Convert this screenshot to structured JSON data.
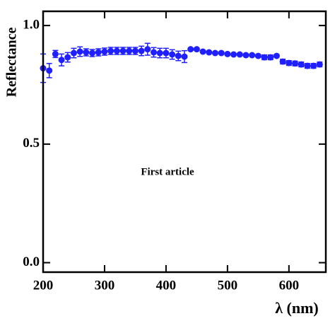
{
  "chart_data": {
    "type": "scatter",
    "xlabel": "λ (nm)",
    "ylabel": "Reflectance",
    "annotation": "First article",
    "xlim": [
      200,
      660
    ],
    "ylim": [
      -0.04,
      1.06
    ],
    "xticks": [
      200,
      300,
      400,
      500,
      600
    ],
    "yticks": [
      {
        "value": 0,
        "label": "0.0"
      },
      0.5,
      {
        "value": 1,
        "label": "1.0"
      }
    ],
    "series": [
      {
        "color": "#1f1fff",
        "x": [
          200,
          210,
          220,
          230,
          240,
          250,
          260,
          270,
          280,
          290,
          300,
          310,
          320,
          330,
          340,
          350,
          360,
          370,
          380,
          390,
          400,
          410,
          420,
          430
        ],
        "values": [
          0.82,
          0.81,
          0.88,
          0.855,
          0.866,
          0.884,
          0.89,
          0.887,
          0.884,
          0.887,
          0.89,
          0.893,
          0.893,
          0.893,
          0.893,
          0.893,
          0.893,
          0.9,
          0.887,
          0.884,
          0.884,
          0.878,
          0.872,
          0.869
        ],
        "errors": [
          0.06,
          0.03,
          0.015,
          0.025,
          0.02,
          0.02,
          0.02,
          0.015,
          0.015,
          0.015,
          0.015,
          0.015,
          0.015,
          0.015,
          0.015,
          0.015,
          0.02,
          0.025,
          0.02,
          0.02,
          0.02,
          0.02,
          0.02,
          0.025
        ]
      },
      {
        "color": "#1f1fff",
        "x": [
          440,
          450,
          460,
          470,
          480,
          490,
          500,
          510,
          520,
          530,
          540,
          550,
          560,
          570,
          580,
          590,
          600,
          610,
          620,
          630,
          640,
          650
        ],
        "values": [
          0.9,
          0.9,
          0.89,
          0.887,
          0.884,
          0.884,
          0.88,
          0.878,
          0.878,
          0.875,
          0.875,
          0.872,
          0.866,
          0.866,
          0.872,
          0.848,
          0.842,
          0.84,
          0.836,
          0.83,
          0.83,
          0.836
        ],
        "errors": [
          0.005,
          0.005,
          0.005,
          0.005,
          0.005,
          0.005,
          0.005,
          0.005,
          0.005,
          0.005,
          0.005,
          0.005,
          0.01,
          0.01,
          0.005,
          0.01,
          0.01,
          0.01,
          0.01,
          0.01,
          0.01,
          0.01
        ]
      }
    ]
  }
}
